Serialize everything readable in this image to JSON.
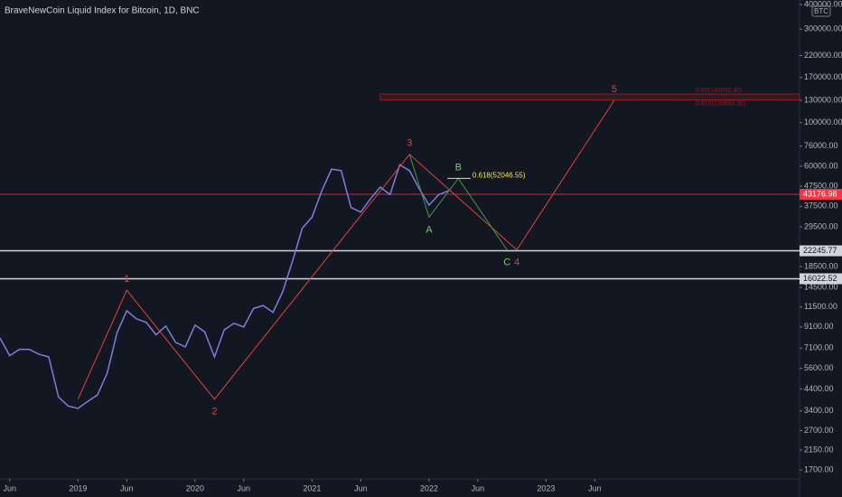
{
  "chart_data": {
    "type": "line",
    "title": "BraveNewCoin Liquid Index for Bitcoin, 1D, BNC",
    "badge": "BTC",
    "log_scale": true,
    "xlim": [
      "2018-05",
      "2025-03"
    ],
    "ylim": [
      1530,
      422000
    ],
    "xticks": [
      {
        "value": "2018-06",
        "label": "Jun"
      },
      {
        "value": "2019-01",
        "label": "2019"
      },
      {
        "value": "2019-06",
        "label": "Jun"
      },
      {
        "value": "2020-01",
        "label": "2020"
      },
      {
        "value": "2020-06",
        "label": "Jun"
      },
      {
        "value": "2021-01",
        "label": "2021"
      },
      {
        "value": "2021-06",
        "label": "Jun"
      },
      {
        "value": "2022-01",
        "label": "2022"
      },
      {
        "value": "2022-06",
        "label": "Jun"
      },
      {
        "value": "2023-01",
        "label": "2023"
      },
      {
        "value": "2023-06",
        "label": "Jun"
      }
    ],
    "yticks": [
      {
        "value": 400000,
        "label": "400000.00"
      },
      {
        "value": 300000,
        "label": "300000.00"
      },
      {
        "value": 220000,
        "label": "220000.00"
      },
      {
        "value": 170000,
        "label": "170000.00"
      },
      {
        "value": 130000,
        "label": "130000.00"
      },
      {
        "value": 100000,
        "label": "100000.00"
      },
      {
        "value": 76000,
        "label": "76000.00"
      },
      {
        "value": 60000,
        "label": "60000.00"
      },
      {
        "value": 47500,
        "label": "47500.00"
      },
      {
        "value": 37500,
        "label": "37500.00"
      },
      {
        "value": 29500,
        "label": "29500.00"
      },
      {
        "value": 18500,
        "label": "18500.00"
      },
      {
        "value": 14500,
        "label": "14500.00"
      },
      {
        "value": 11500,
        "label": "11500.00"
      },
      {
        "value": 9100,
        "label": "9100.00"
      },
      {
        "value": 7100,
        "label": "7100.00"
      },
      {
        "value": 5600,
        "label": "5600.00"
      },
      {
        "value": 4400,
        "label": "4400.00"
      },
      {
        "value": 3400,
        "label": "3400.00"
      },
      {
        "value": 2700,
        "label": "2700.00"
      },
      {
        "value": 2150,
        "label": "2150.00"
      },
      {
        "value": 1700,
        "label": "1700.00"
      }
    ],
    "x": [
      "2018-05",
      "2018-06",
      "2018-07",
      "2018-08",
      "2018-09",
      "2018-10",
      "2018-11",
      "2018-12",
      "2019-01",
      "2019-02",
      "2019-03",
      "2019-04",
      "2019-05",
      "2019-06",
      "2019-07",
      "2019-08",
      "2019-09",
      "2019-10",
      "2019-11",
      "2019-12",
      "2020-01",
      "2020-02",
      "2020-03",
      "2020-04",
      "2020-05",
      "2020-06",
      "2020-07",
      "2020-08",
      "2020-09",
      "2020-10",
      "2020-11",
      "2020-12",
      "2021-01",
      "2021-02",
      "2021-03",
      "2021-04",
      "2021-05",
      "2021-06",
      "2021-07",
      "2021-08",
      "2021-09",
      "2021-10",
      "2021-11",
      "2021-12",
      "2022-01",
      "2022-02",
      "2022-03"
    ],
    "series": [
      {
        "name": "BTC",
        "color": "#7a7fe0",
        "values": [
          8000,
          6500,
          7000,
          7000,
          6600,
          6400,
          4000,
          3600,
          3500,
          3800,
          4100,
          5300,
          8500,
          11000,
          10000,
          9600,
          8300,
          9200,
          7600,
          7200,
          9300,
          8600,
          6400,
          8800,
          9500,
          9100,
          11300,
          11700,
          10800,
          13800,
          19700,
          29000,
          33000,
          45000,
          58000,
          57000,
          37000,
          35000,
          41000,
          47000,
          43000,
          61000,
          57000,
          46000,
          38000,
          43000,
          45000
        ]
      }
    ],
    "levels": [
      {
        "value": 43176.98,
        "color": "#f23645",
        "text_color": "#ffffff"
      },
      {
        "value": 22245.77,
        "color": "#d1d4dc",
        "text_color": "#131722"
      },
      {
        "value": 16022.52,
        "color": "#d1d4dc",
        "text_color": "#131722"
      }
    ],
    "wave": {
      "color": "#e0443a",
      "x": [
        "2019-01",
        "2019-06",
        "2020-03",
        "2021-11",
        "2022-10",
        "2023-08"
      ],
      "values": [
        3900,
        14000,
        3900,
        69000,
        22500,
        130000
      ],
      "labels": [
        null,
        "1",
        "2",
        "3",
        "4",
        "5"
      ]
    },
    "correction": {
      "color": "#3c9a4f",
      "label_color": "#6fd16f",
      "x": [
        "2021-11",
        "2022-01",
        "2022-04",
        "2022-09"
      ],
      "values": [
        69000,
        33000,
        52000,
        22500
      ],
      "labels": [
        null,
        "A",
        "B",
        "C"
      ]
    },
    "fib": {
      "label": "0.618(52046.55)",
      "value": 52046.55,
      "color": "#f5e642",
      "x": [
        "2022-04",
        "2022-06"
      ]
    },
    "fib_zone": {
      "x": "2021-08",
      "color": "#8b1e28",
      "levels": [
        {
          "label": "0.65(140052.40)",
          "value": 140052.4
        },
        {
          "label": "0.618(130659.30)",
          "value": 130659.3
        }
      ]
    }
  }
}
